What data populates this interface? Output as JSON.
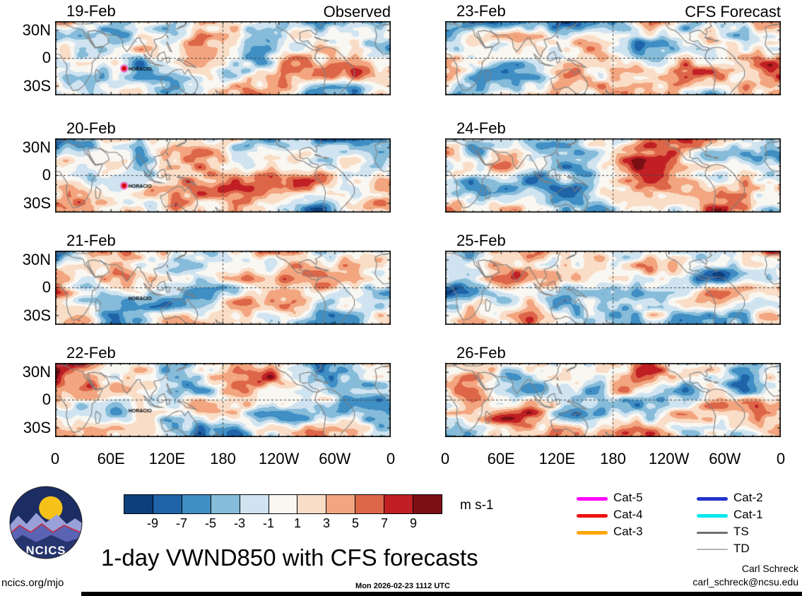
{
  "header": {
    "left_label": "Observed",
    "right_label": "CFS Forecast"
  },
  "panels": [
    {
      "date": "19-Feb",
      "group": "observed",
      "storm_label": "HORACIO",
      "storm_marker": true
    },
    {
      "date": "20-Feb",
      "group": "observed",
      "storm_label": "HORACIO",
      "storm_marker": true
    },
    {
      "date": "21-Feb",
      "group": "observed",
      "storm_label": "HORACIO",
      "storm_marker": false
    },
    {
      "date": "22-Feb",
      "group": "observed",
      "storm_label": "HORACIO",
      "storm_marker": false
    },
    {
      "date": "23-Feb",
      "group": "forecast"
    },
    {
      "date": "24-Feb",
      "group": "forecast"
    },
    {
      "date": "25-Feb",
      "group": "forecast"
    },
    {
      "date": "26-Feb",
      "group": "forecast"
    }
  ],
  "axes": {
    "y_tick_labels": [
      "30N",
      "0",
      "30S"
    ],
    "x_tick_labels": [
      "0",
      "60E",
      "120E",
      "180",
      "120W",
      "60W",
      "0"
    ]
  },
  "colorbar": {
    "tick_labels": [
      "-9",
      "-7",
      "-5",
      "-3",
      "-1",
      "1",
      "3",
      "5",
      "7",
      "9"
    ],
    "units": "m s-1",
    "colors": [
      "#0d3f7c",
      "#1f63a8",
      "#3f8ec4",
      "#86bcd9",
      "#cfe3f0",
      "#f9f7f2",
      "#f9ddc7",
      "#f2a57f",
      "#dd6648",
      "#c01f24",
      "#7c0f14"
    ]
  },
  "legend": {
    "items": [
      {
        "label": "Cat-5",
        "color": "#ff00ff"
      },
      {
        "label": "Cat-4",
        "color": "#ee1111"
      },
      {
        "label": "Cat-3",
        "color": "#ffa500"
      },
      {
        "label": "Cat-2",
        "color": "#2233cc"
      },
      {
        "label": "Cat-1",
        "color": "#00e8f0"
      },
      {
        "label": "TS",
        "color": "#6e6e6e"
      },
      {
        "label": "TD",
        "color": "#b5b5b5"
      }
    ]
  },
  "title": "1-day VWND850 with CFS forecasts",
  "logo": {
    "text": "NCICS"
  },
  "footer": {
    "site": "ncics.org/mjo",
    "timestamp": "Mon 2026-02-23 1112 UTC",
    "credit_name": "Carl Schreck",
    "credit_email": "carl_schreck@ncsu.edu"
  },
  "chart_data": {
    "type": "heatmap",
    "title": "1-day VWND850 with CFS forecasts",
    "variable": "VWND850 (850-hPa meridional wind anomaly)",
    "units": "m s-1",
    "columns": [
      {
        "name": "Observed",
        "dates": [
          "19-Feb",
          "20-Feb",
          "21-Feb",
          "22-Feb"
        ]
      },
      {
        "name": "CFS Forecast",
        "dates": [
          "23-Feb",
          "24-Feb",
          "25-Feb",
          "26-Feb"
        ]
      }
    ],
    "panel_grid": {
      "rows": 4,
      "cols": 2
    },
    "lat_ticks": [
      "30N",
      "0",
      "30S"
    ],
    "lon_ticks": [
      "0",
      "60E",
      "120E",
      "180",
      "120W",
      "60W",
      "0"
    ],
    "contour_levels": [
      -9,
      -7,
      -5,
      -3,
      -1,
      1,
      3,
      5,
      7,
      9
    ],
    "palette": [
      "#0d3f7c",
      "#1f63a8",
      "#3f8ec4",
      "#86bcd9",
      "#cfe3f0",
      "#f9f7f2",
      "#f9ddc7",
      "#f2a57f",
      "#dd6648",
      "#c01f24",
      "#7c0f14"
    ],
    "storm_annotations": [
      {
        "name": "HORACIO",
        "panels": [
          "19-Feb",
          "20-Feb",
          "21-Feb",
          "22-Feb"
        ],
        "approx_location": "southern Indian Ocean, ~74E 11S"
      }
    ],
    "tc_intensity_legend": [
      "Cat-5",
      "Cat-4",
      "Cat-3",
      "Cat-2",
      "Cat-1",
      "TS",
      "TD"
    ],
    "grid_lines": "dashed at equator and 180 longitude",
    "legend_position": "bottom-right"
  }
}
